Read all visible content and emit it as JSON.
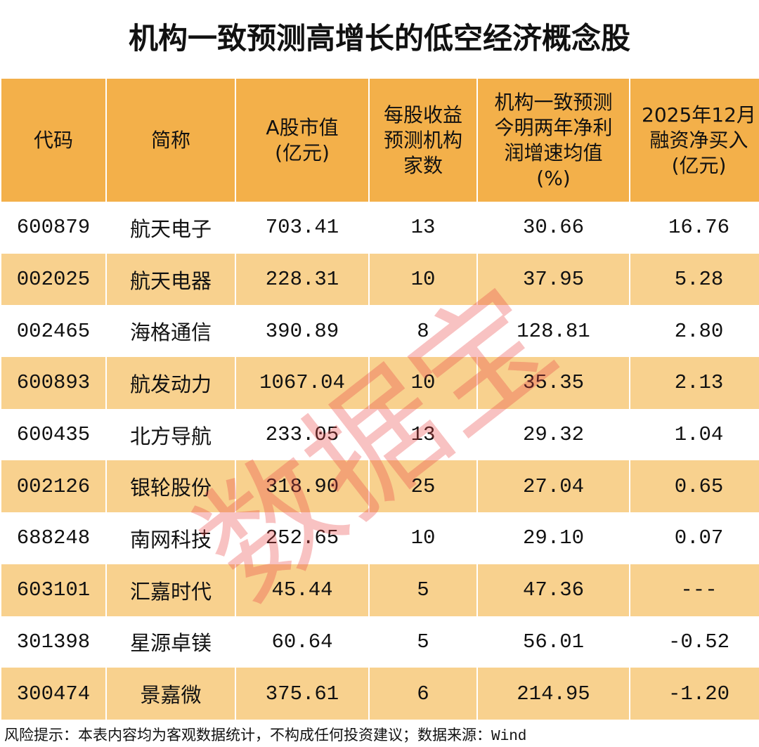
{
  "title": "机构一致预测高增长的低空经济概念股",
  "table": {
    "header": [
      [
        "代码"
      ],
      [
        "简称"
      ],
      [
        "A股市值",
        "(亿元)"
      ],
      [
        "每股收益",
        "预测机构",
        "家数"
      ],
      [
        "机构一致预测",
        "今明两年净利",
        "润增速均值",
        "(%)"
      ],
      [
        "2025年12月",
        "融资净买入",
        "(亿元)"
      ]
    ],
    "rows": [
      [
        "600879",
        "航天电子",
        "703.41",
        "13",
        "30.66",
        "16.76"
      ],
      [
        "002025",
        "航天电器",
        "228.31",
        "10",
        "37.95",
        "5.28"
      ],
      [
        "002465",
        "海格通信",
        "390.89",
        "8",
        "128.81",
        "2.80"
      ],
      [
        "600893",
        "航发动力",
        "1067.04",
        "10",
        "35.35",
        "2.13"
      ],
      [
        "600435",
        "北方导航",
        "233.05",
        "13",
        "29.32",
        "1.04"
      ],
      [
        "002126",
        "银轮股份",
        "318.90",
        "25",
        "27.04",
        "0.65"
      ],
      [
        "688248",
        "南网科技",
        "252.65",
        "10",
        "29.10",
        "0.07"
      ],
      [
        "603101",
        "汇嘉时代",
        "45.44",
        "5",
        "47.36",
        "---"
      ],
      [
        "301398",
        "星源卓镁",
        "60.64",
        "5",
        "56.01",
        "-0.52"
      ],
      [
        "300474",
        "景嘉微",
        "375.61",
        "6",
        "214.95",
        "-1.20"
      ]
    ]
  },
  "watermark": "数据宝",
  "footer": "风险提示：本表内容均为客观数据统计，不构成任何投资建议；数据来源：Wind"
}
